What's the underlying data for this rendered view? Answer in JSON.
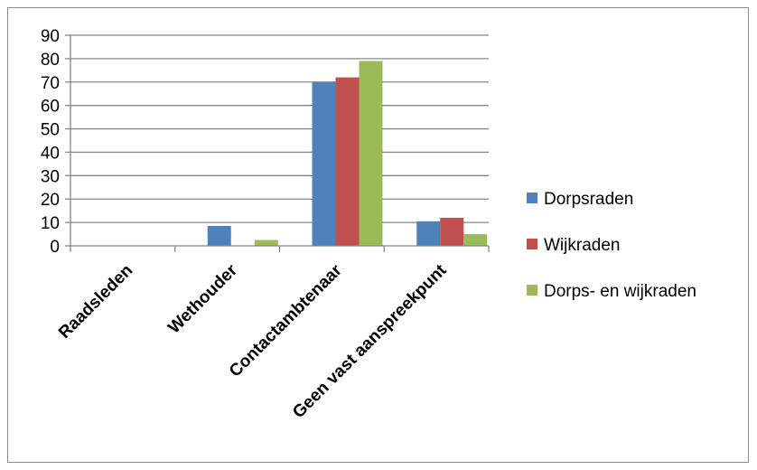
{
  "chart_data": {
    "type": "bar",
    "title": "",
    "xlabel": "",
    "ylabel": "",
    "categories": [
      "Raadsleden",
      "Wethouder",
      "Contactambtenaar",
      "Geen vast aanspreekpunt"
    ],
    "series": [
      {
        "name": "Dorpsraden",
        "values": [
          0,
          8.5,
          70,
          10.5
        ],
        "color": "#4f81bd"
      },
      {
        "name": "Wijkraden",
        "values": [
          0,
          0,
          72,
          12
        ],
        "color": "#c0504d"
      },
      {
        "name": "Dorps- en wijkraden",
        "values": [
          0,
          2.5,
          79,
          5
        ],
        "color": "#9bbb59"
      }
    ],
    "ylim": [
      0,
      90
    ],
    "yticks": [
      0,
      10,
      20,
      30,
      40,
      50,
      60,
      70,
      80,
      90
    ],
    "grid": true,
    "legend": "right"
  }
}
